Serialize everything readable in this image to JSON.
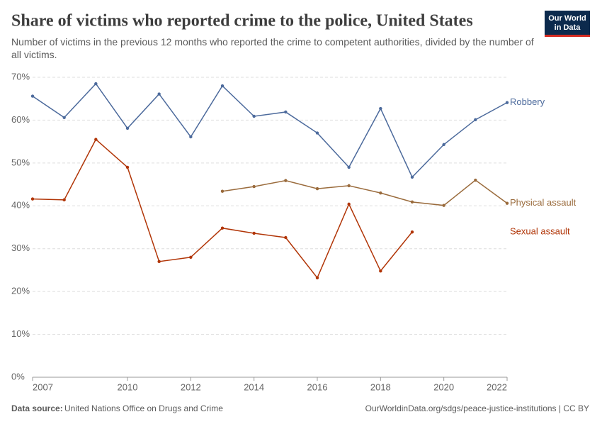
{
  "chart_data": {
    "type": "line",
    "title": "Share of victims who reported crime to the police, United States",
    "subtitle": "Number of victims in the previous 12 months who reported the crime to competent authorities, divided by the number of all victims.",
    "logo": [
      "Our World",
      "in Data"
    ],
    "source_label": "Data source:",
    "source": "United Nations Office on Drugs and Crime",
    "url": "OurWorldinData.org/sdgs/peace-justice-institutions | CC BY",
    "x": [
      2007,
      2008,
      2009,
      2010,
      2011,
      2012,
      2013,
      2014,
      2015,
      2016,
      2017,
      2018,
      2019,
      2020,
      2021,
      2022
    ],
    "xlim": [
      2007,
      2022
    ],
    "xticks": [
      2007,
      2010,
      2012,
      2014,
      2016,
      2018,
      2020,
      2022
    ],
    "ylim": [
      0,
      70
    ],
    "yticks": [
      {
        "value": 0,
        "label": "0%"
      },
      {
        "value": 10,
        "label": "10%"
      },
      {
        "value": 20,
        "label": "20%"
      },
      {
        "value": 30,
        "label": "30%"
      },
      {
        "value": 40,
        "label": "40%"
      },
      {
        "value": 50,
        "label": "50%"
      },
      {
        "value": 60,
        "label": "60%"
      },
      {
        "value": 70,
        "label": "70%"
      }
    ],
    "grid": true,
    "series": [
      {
        "name": "Robbery",
        "color": "#4c6a9c",
        "values": [
          65.6,
          60.6,
          68.5,
          58.1,
          66.1,
          56.1,
          68.0,
          60.9,
          61.9,
          57.0,
          49.0,
          62.7,
          46.7,
          54.3,
          60.1,
          64.1
        ]
      },
      {
        "name": "Physical assault",
        "color": "#9a6b3c",
        "values": [
          null,
          null,
          null,
          null,
          null,
          null,
          43.4,
          44.5,
          45.9,
          44.0,
          44.7,
          43.0,
          40.9,
          40.1,
          46.0,
          40.6
        ]
      },
      {
        "name": "Sexual assault",
        "color": "#b13507",
        "values": [
          41.6,
          41.4,
          55.5,
          49.0,
          27.0,
          28.0,
          34.8,
          33.6,
          32.6,
          23.2,
          40.4,
          24.8,
          33.9,
          null,
          null,
          null
        ]
      }
    ]
  }
}
